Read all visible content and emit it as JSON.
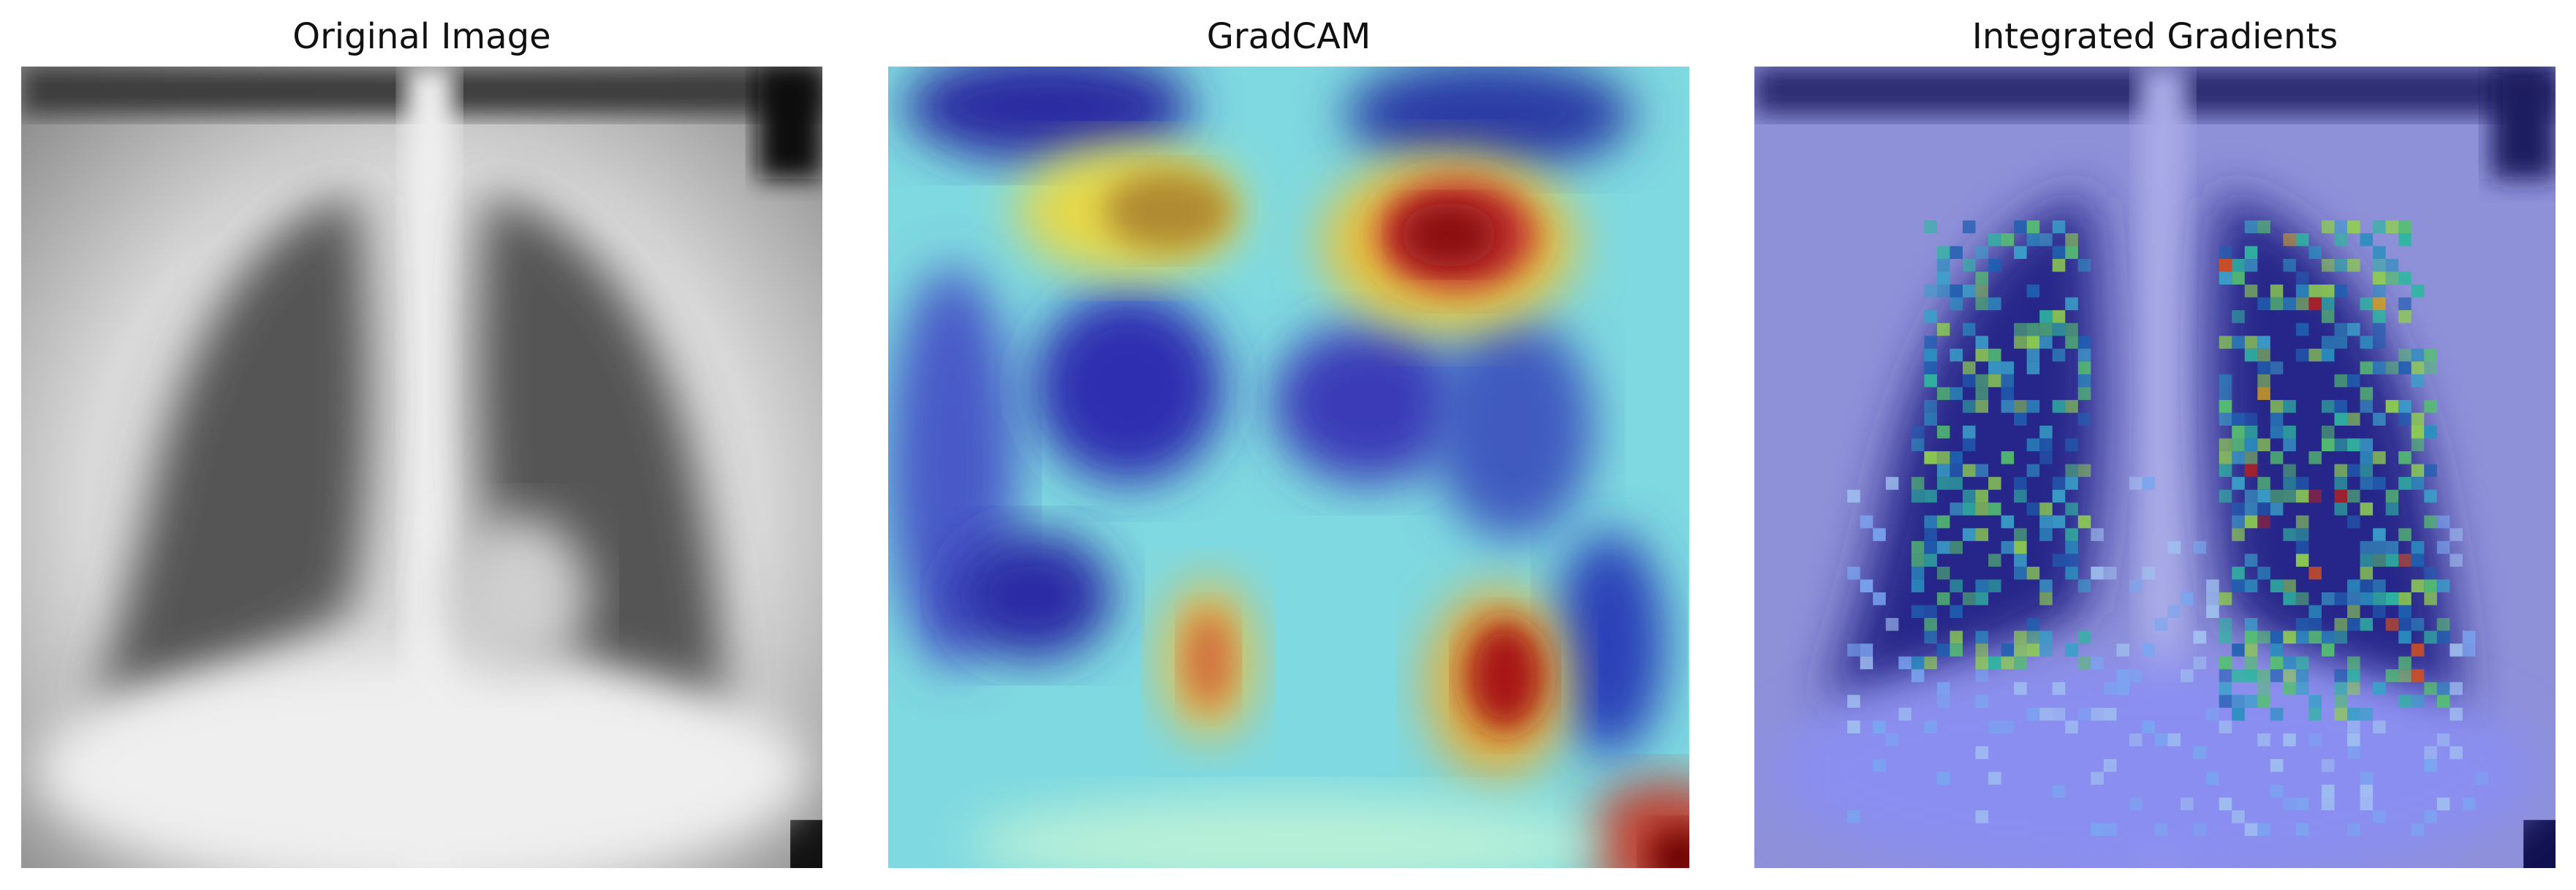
{
  "panels": [
    {
      "title": "Original Image"
    },
    {
      "title": "GradCAM"
    },
    {
      "title": "Integrated Gradients"
    }
  ],
  "colors": {
    "background": "#ffffff",
    "title_text": "#111111",
    "jet_low": "#00007f",
    "jet_mid": "#7fff7f",
    "jet_high": "#7f0000",
    "ig_overlay": "#3b3bd6"
  }
}
